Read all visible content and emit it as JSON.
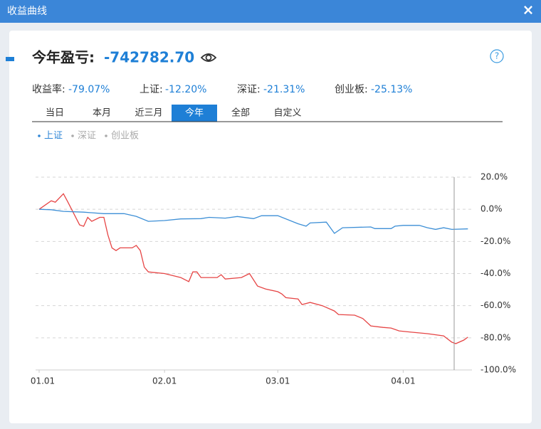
{
  "window": {
    "title": "收益曲线",
    "close": "×"
  },
  "header": {
    "label": "今年盈亏:",
    "value": "-742782.70",
    "help": "?"
  },
  "stats": [
    {
      "label": "收益率:",
      "value": "-79.07%"
    },
    {
      "label": "上证:",
      "value": "-12.20%"
    },
    {
      "label": "深证:",
      "value": "-21.31%"
    },
    {
      "label": "创业板:",
      "value": "-25.13%"
    }
  ],
  "tabs": [
    "当日",
    "本月",
    "近三月",
    "今年",
    "全部",
    "自定义"
  ],
  "active_tab": 3,
  "chart_data": {
    "type": "line",
    "legend": [
      {
        "label": "上证",
        "active": true,
        "color": "#2f86d6"
      },
      {
        "label": "深证",
        "active": false,
        "color": "#aaaaaa"
      },
      {
        "label": "创业板",
        "active": false,
        "color": "#aaaaaa"
      }
    ],
    "xlim": [
      "01.01",
      "04.18"
    ],
    "xticks": [
      "01.01",
      "02.01",
      "03.01",
      "04.01"
    ],
    "ylim": [
      -100,
      20
    ],
    "yticks": [
      {
        "value": 20,
        "label": "20.0%"
      },
      {
        "value": 0,
        "label": "0.0%"
      },
      {
        "value": -20,
        "label": "-20.0%"
      },
      {
        "value": -40,
        "label": "-40.0%"
      },
      {
        "value": -60,
        "label": "-60.0%"
      },
      {
        "value": -80,
        "label": "-80.0%"
      },
      {
        "value": -100,
        "label": "-100.0%"
      }
    ],
    "grid": true,
    "series": [
      {
        "color": "#e64545",
        "x": [
          "01.01",
          "01.04",
          "01.05",
          "01.07",
          "01.08",
          "01.11",
          "01.12",
          "01.13",
          "01.14",
          "01.16",
          "01.17",
          "01.18",
          "01.19",
          "01.20",
          "01.21",
          "01.24",
          "01.25",
          "01.26",
          "01.27",
          "01.28",
          "02.01",
          "02.05",
          "02.07",
          "02.08",
          "02.09",
          "02.10",
          "02.14",
          "02.15",
          "02.16",
          "02.20",
          "02.22",
          "02.24",
          "02.26",
          "03.01",
          "03.02",
          "03.03",
          "03.06",
          "03.07",
          "03.09",
          "03.12",
          "03.15",
          "03.16",
          "03.20",
          "03.22",
          "03.24",
          "03.27",
          "03.29",
          "03.31",
          "04.03",
          "04.07",
          "04.11",
          "04.13",
          "04.14",
          "04.16",
          "04.17"
        ],
        "values": [
          0,
          5.3,
          4.4,
          9.7,
          5,
          -9.7,
          -10.6,
          -5,
          -7.5,
          -5,
          -5,
          -16,
          -24,
          -25.7,
          -24,
          -24,
          -22.5,
          -25.7,
          -36,
          -39,
          -40,
          -42.5,
          -45,
          -39,
          -39,
          -42.5,
          -42.5,
          -40.7,
          -43.4,
          -42.5,
          -40,
          -47.8,
          -49.6,
          -51.3,
          -52.7,
          -55,
          -55.8,
          -59.3,
          -58,
          -60,
          -63.3,
          -65.5,
          -65.9,
          -68,
          -72.6,
          -73.5,
          -73.9,
          -75.7,
          -76.5,
          -77.4,
          -78.8,
          -82.7,
          -83.6,
          -81.4,
          -79.6
        ]
      },
      {
        "color": "#3d8fd6",
        "x": [
          "01.01",
          "01.04",
          "01.07",
          "01.12",
          "01.17",
          "01.22",
          "01.25",
          "01.28",
          "02.01",
          "02.05",
          "02.10",
          "02.12",
          "02.16",
          "02.19",
          "02.23",
          "02.25",
          "03.01",
          "03.06",
          "03.08",
          "03.09",
          "03.13",
          "03.15",
          "03.17",
          "03.24",
          "03.25",
          "03.29",
          "03.30",
          "04.01",
          "04.05",
          "04.07",
          "04.09",
          "04.11",
          "04.13",
          "04.17"
        ],
        "values": [
          0,
          -0.3,
          -1.3,
          -1.8,
          -2.7,
          -2.7,
          -4.4,
          -7.5,
          -7,
          -6,
          -5.8,
          -5,
          -5.5,
          -4.5,
          -5.8,
          -4,
          -4,
          -9,
          -10.5,
          -8.5,
          -8,
          -15,
          -11.5,
          -11,
          -12,
          -12,
          -10.5,
          -10,
          -10,
          -11.5,
          -12.5,
          -11.5,
          -12.5,
          -12.2
        ]
      }
    ]
  }
}
